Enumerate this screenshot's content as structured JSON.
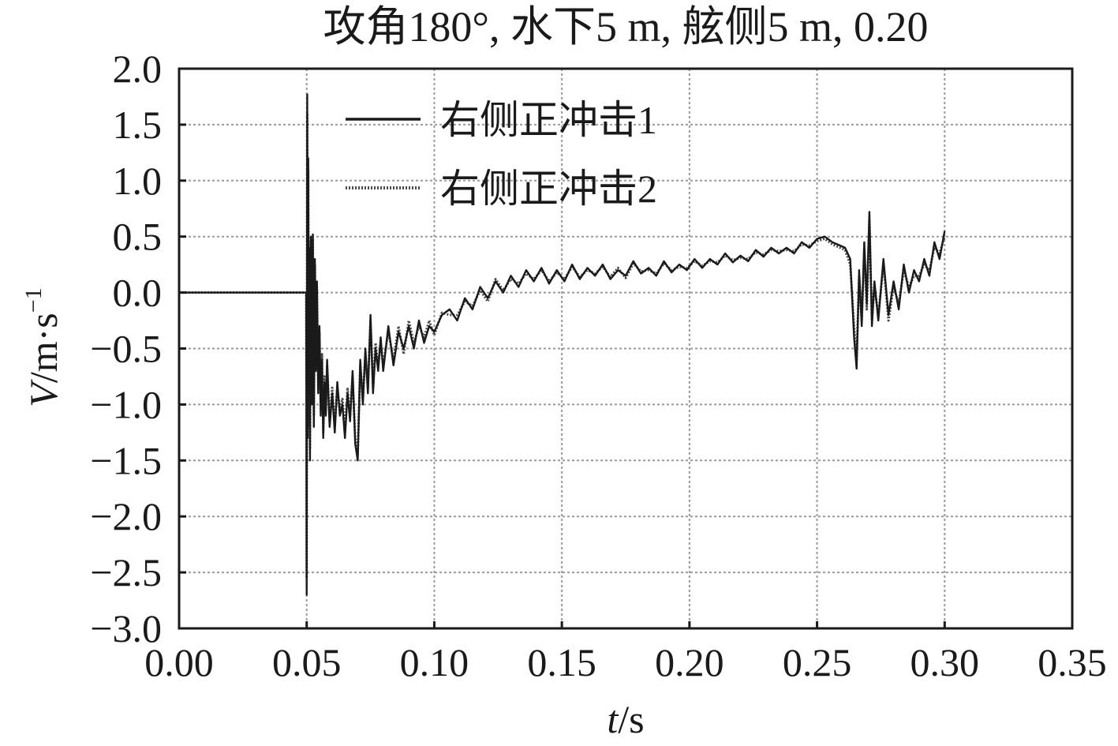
{
  "chart_data": {
    "type": "line",
    "title": "攻角180°, 水下5 m, 舷侧5 m,  0.20",
    "xlabel_var": "t",
    "xlabel_unit": "/s",
    "ylabel_var": "V",
    "ylabel_unit": "/m·s",
    "ylabel_exp": "−1",
    "xlim": [
      0.0,
      0.35
    ],
    "ylim": [
      -3.0,
      2.0
    ],
    "grid": true,
    "legend_position": "top-left",
    "x_ticks": [
      0.0,
      0.05,
      0.1,
      0.15,
      0.2,
      0.25,
      0.3,
      0.35
    ],
    "x_tick_labels": [
      "0.00",
      "0.05",
      "0.10",
      "0.15",
      "0.20",
      "0.25",
      "0.30",
      "0.35"
    ],
    "y_ticks": [
      2.0,
      1.5,
      1.0,
      0.5,
      0.0,
      -0.5,
      -1.0,
      -1.5,
      -2.0,
      -2.5,
      -3.0
    ],
    "y_tick_labels": [
      "2.0",
      "1.5",
      "1.0",
      "0.5",
      "0.0",
      "−0.5",
      "−1.0",
      "−1.5",
      "−2.0",
      "−2.5",
      "−3.0"
    ],
    "series": [
      {
        "name": "右侧正冲击1",
        "style": "solid",
        "color": "#1a1a1a",
        "x": [
          0.0,
          0.0498,
          0.05,
          0.0502,
          0.0504,
          0.0506,
          0.0508,
          0.051,
          0.0513,
          0.0516,
          0.052,
          0.0524,
          0.0528,
          0.0532,
          0.0536,
          0.054,
          0.0545,
          0.055,
          0.0555,
          0.056,
          0.0565,
          0.057,
          0.0575,
          0.058,
          0.059,
          0.06,
          0.061,
          0.062,
          0.063,
          0.064,
          0.065,
          0.066,
          0.067,
          0.068,
          0.069,
          0.07,
          0.071,
          0.072,
          0.073,
          0.074,
          0.075,
          0.076,
          0.077,
          0.078,
          0.079,
          0.08,
          0.082,
          0.084,
          0.086,
          0.088,
          0.09,
          0.092,
          0.094,
          0.096,
          0.098,
          0.1,
          0.103,
          0.106,
          0.109,
          0.112,
          0.115,
          0.118,
          0.121,
          0.124,
          0.127,
          0.13,
          0.133,
          0.136,
          0.139,
          0.142,
          0.145,
          0.148,
          0.151,
          0.154,
          0.157,
          0.16,
          0.163,
          0.166,
          0.169,
          0.172,
          0.175,
          0.178,
          0.181,
          0.184,
          0.187,
          0.19,
          0.193,
          0.196,
          0.199,
          0.202,
          0.205,
          0.208,
          0.211,
          0.214,
          0.217,
          0.22,
          0.223,
          0.226,
          0.229,
          0.232,
          0.235,
          0.238,
          0.241,
          0.244,
          0.247,
          0.25,
          0.253,
          0.256,
          0.259,
          0.261,
          0.263,
          0.2645,
          0.2655,
          0.2665,
          0.2675,
          0.2685,
          0.2695,
          0.2705,
          0.2715,
          0.2725,
          0.274,
          0.276,
          0.278,
          0.28,
          0.282,
          0.284,
          0.286,
          0.288,
          0.29,
          0.292,
          0.294,
          0.296,
          0.298,
          0.3
        ],
        "values": [
          0.0,
          0.0,
          -2.7,
          1.77,
          -1.3,
          1.2,
          -0.9,
          0.4,
          -1.5,
          0.5,
          -1.0,
          0.52,
          -1.2,
          0.3,
          -0.7,
          0.1,
          -0.9,
          -0.3,
          -1.1,
          -0.6,
          -1.3,
          -0.8,
          -1.1,
          -0.6,
          -1.2,
          -0.9,
          -1.25,
          -0.8,
          -1.1,
          -1.0,
          -1.3,
          -0.9,
          -1.15,
          -0.7,
          -1.35,
          -1.5,
          -0.6,
          -1.0,
          -0.5,
          -0.9,
          -0.2,
          -0.9,
          -0.5,
          -0.7,
          -0.4,
          -0.7,
          -0.3,
          -0.65,
          -0.35,
          -0.5,
          -0.3,
          -0.5,
          -0.25,
          -0.45,
          -0.3,
          -0.35,
          -0.2,
          -0.15,
          -0.25,
          -0.05,
          -0.15,
          0.05,
          -0.05,
          0.1,
          0.0,
          0.15,
          0.05,
          0.2,
          0.1,
          0.22,
          0.08,
          0.2,
          0.1,
          0.25,
          0.12,
          0.22,
          0.15,
          0.25,
          0.12,
          0.2,
          0.15,
          0.28,
          0.17,
          0.22,
          0.15,
          0.28,
          0.18,
          0.25,
          0.2,
          0.3,
          0.22,
          0.3,
          0.25,
          0.35,
          0.27,
          0.33,
          0.28,
          0.38,
          0.32,
          0.4,
          0.35,
          0.4,
          0.35,
          0.45,
          0.4,
          0.48,
          0.5,
          0.45,
          0.42,
          0.4,
          0.3,
          -0.4,
          -0.68,
          0.2,
          -0.3,
          0.45,
          -0.1,
          0.72,
          -0.3,
          0.1,
          -0.25,
          0.3,
          -0.2,
          0.1,
          -0.15,
          0.25,
          0.0,
          0.2,
          0.1,
          0.3,
          0.15,
          0.45,
          0.3,
          0.55
        ]
      },
      {
        "name": "右侧正冲击2",
        "style": "dotted",
        "color": "#4a4a4a",
        "x": [
          0.0,
          0.0498,
          0.05,
          0.0502,
          0.0504,
          0.0506,
          0.0508,
          0.051,
          0.0513,
          0.0516,
          0.052,
          0.0524,
          0.0528,
          0.0532,
          0.0536,
          0.054,
          0.0545,
          0.055,
          0.0555,
          0.056,
          0.0565,
          0.057,
          0.0575,
          0.058,
          0.059,
          0.06,
          0.061,
          0.062,
          0.063,
          0.064,
          0.065,
          0.066,
          0.067,
          0.068,
          0.069,
          0.07,
          0.071,
          0.072,
          0.073,
          0.074,
          0.075,
          0.076,
          0.077,
          0.078,
          0.079,
          0.08,
          0.082,
          0.084,
          0.086,
          0.088,
          0.09,
          0.092,
          0.094,
          0.096,
          0.098,
          0.1,
          0.103,
          0.106,
          0.109,
          0.112,
          0.115,
          0.118,
          0.121,
          0.124,
          0.127,
          0.13,
          0.133,
          0.136,
          0.139,
          0.142,
          0.145,
          0.148,
          0.151,
          0.154,
          0.157,
          0.16,
          0.163,
          0.166,
          0.169,
          0.172,
          0.175,
          0.178,
          0.181,
          0.184,
          0.187,
          0.19,
          0.193,
          0.196,
          0.199,
          0.202,
          0.205,
          0.208,
          0.211,
          0.214,
          0.217,
          0.22,
          0.223,
          0.226,
          0.229,
          0.232,
          0.235,
          0.238,
          0.241,
          0.244,
          0.247,
          0.25,
          0.253,
          0.256,
          0.259,
          0.261,
          0.263,
          0.2645,
          0.2655,
          0.2665,
          0.2675,
          0.2685,
          0.2695,
          0.2705,
          0.2715,
          0.2725,
          0.274,
          0.276,
          0.278,
          0.28,
          0.282,
          0.284,
          0.286,
          0.288,
          0.29,
          0.292,
          0.294,
          0.296,
          0.298,
          0.3
        ],
        "values": [
          0.0,
          0.0,
          -2.55,
          1.6,
          -1.2,
          1.1,
          -0.8,
          0.35,
          -1.4,
          0.45,
          -0.95,
          0.48,
          -1.1,
          0.25,
          -0.65,
          0.05,
          -0.85,
          -0.35,
          -1.05,
          -0.55,
          -1.25,
          -0.75,
          -1.05,
          -0.65,
          -1.15,
          -0.85,
          -1.2,
          -0.85,
          -1.05,
          -0.95,
          -1.25,
          -0.85,
          -1.1,
          -0.75,
          -1.3,
          -1.45,
          -0.65,
          -0.95,
          -0.55,
          -0.85,
          -0.25,
          -0.85,
          -0.45,
          -0.65,
          -0.45,
          -0.65,
          -0.35,
          -0.6,
          -0.3,
          -0.55,
          -0.25,
          -0.45,
          -0.3,
          -0.4,
          -0.25,
          -0.38,
          -0.18,
          -0.2,
          -0.2,
          -0.08,
          -0.12,
          0.02,
          -0.08,
          0.12,
          0.02,
          0.12,
          0.08,
          0.17,
          0.12,
          0.2,
          0.1,
          0.18,
          0.12,
          0.23,
          0.14,
          0.2,
          0.17,
          0.23,
          0.14,
          0.22,
          0.13,
          0.26,
          0.19,
          0.2,
          0.17,
          0.26,
          0.2,
          0.23,
          0.22,
          0.28,
          0.24,
          0.28,
          0.27,
          0.33,
          0.29,
          0.31,
          0.3,
          0.36,
          0.34,
          0.38,
          0.37,
          0.38,
          0.37,
          0.43,
          0.42,
          0.46,
          0.48,
          0.43,
          0.4,
          0.38,
          0.25,
          -0.3,
          -0.6,
          0.15,
          -0.25,
          0.4,
          -0.15,
          0.65,
          -0.25,
          0.05,
          -0.2,
          0.25,
          -0.25,
          0.05,
          -0.1,
          0.2,
          0.05,
          0.15,
          0.15,
          0.25,
          0.2,
          0.4,
          0.35,
          0.5
        ]
      }
    ]
  }
}
